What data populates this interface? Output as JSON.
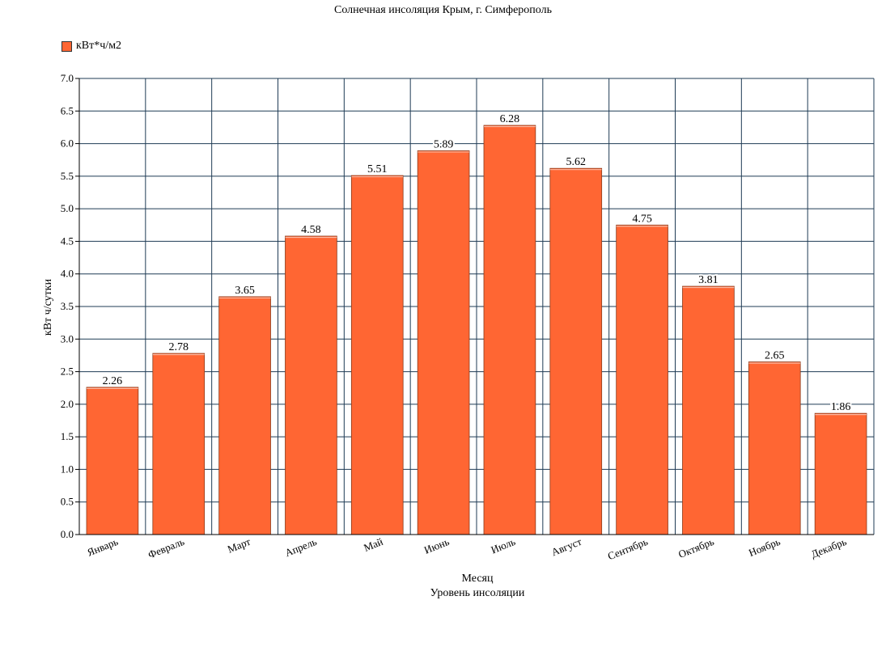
{
  "chart_data": {
    "type": "bar",
    "title": "Солнечная инсоляция Крым, г. Симферополь",
    "xlabel": "Месяц",
    "ylabel": "кВт ч/сутки",
    "caption": "Уровень инсоляции",
    "categories": [
      "Январь",
      "Февраль",
      "Март",
      "Апрель",
      "Май",
      "Июнь",
      "Июль",
      "Август",
      "Сентябрь",
      "Октябрь",
      "Ноябрь",
      "Декабрь"
    ],
    "series": [
      {
        "name": "кВт*ч/м2",
        "color": "#ff6633",
        "values": [
          2.26,
          2.78,
          3.65,
          4.58,
          5.51,
          5.89,
          6.28,
          5.62,
          4.75,
          3.81,
          2.65,
          1.86
        ]
      }
    ],
    "ylim": [
      0,
      7
    ],
    "yticks": [
      "0.0",
      "0.5",
      "1.0",
      "1.5",
      "2.0",
      "2.5",
      "3.0",
      "3.5",
      "4.0",
      "4.5",
      "5.0",
      "5.5",
      "6.0",
      "6.5",
      "7.0"
    ],
    "grid": true,
    "legend_position": "top-left",
    "grid_color": "#1f3b55"
  }
}
